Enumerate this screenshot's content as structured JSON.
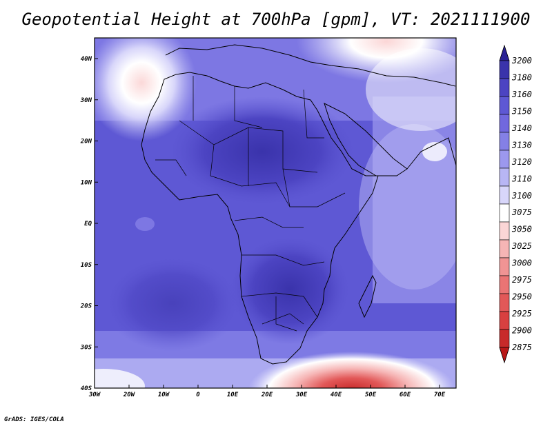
{
  "title": "Geopotential Height at 700hPa [gpm], VT: 2021111900",
  "footer": "GrADS: IGES/COLA",
  "x_axis": {
    "ticks": [
      "30W",
      "20W",
      "10W",
      "0",
      "10E",
      "20E",
      "30E",
      "40E",
      "50E",
      "60E",
      "70E"
    ]
  },
  "y_axis": {
    "ticks": [
      "40N",
      "30N",
      "20N",
      "10N",
      "EQ",
      "10S",
      "20S",
      "30S",
      "40S"
    ]
  },
  "colorbar": {
    "labels": [
      "3200",
      "3180",
      "3160",
      "3150",
      "3140",
      "3130",
      "3120",
      "3110",
      "3100",
      "3075",
      "3050",
      "3025",
      "3000",
      "2975",
      "2950",
      "2925",
      "2900",
      "2875"
    ],
    "colors": [
      "#2b2295",
      "#3a33ab",
      "#4c44c2",
      "#5e58d4",
      "#7168de",
      "#8480e6",
      "#9c98ee",
      "#b8b6f4",
      "#d8d6fa",
      "#ffffff",
      "#fbd6d6",
      "#f6b5b5",
      "#f09494",
      "#ea7474",
      "#e25858",
      "#d84040",
      "#c82a2a",
      "#b81818"
    ]
  }
}
